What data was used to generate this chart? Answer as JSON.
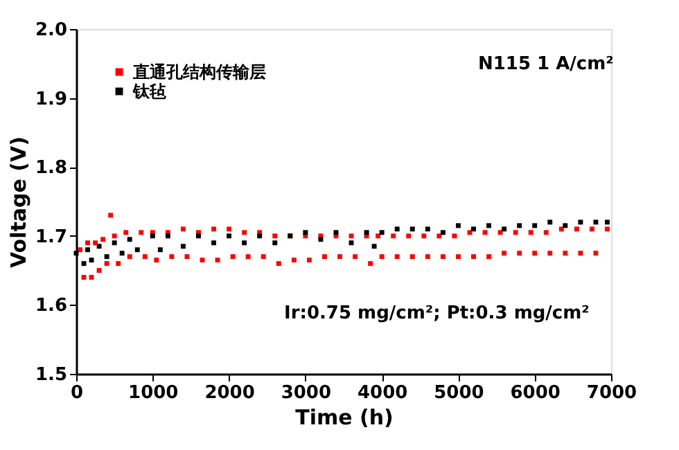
{
  "chart_data": {
    "type": "scatter",
    "xlabel": "Time (h)",
    "ylabel": "Voltage (V)",
    "xlim": [
      0,
      7000
    ],
    "ylim": [
      1.5,
      2.0
    ],
    "xticks": [
      0,
      1000,
      2000,
      3000,
      4000,
      5000,
      6000,
      7000
    ],
    "yticks": [
      1.5,
      1.6,
      1.7,
      1.8,
      1.9,
      {
        "value": 2.0,
        "label": "2.0"
      }
    ],
    "grid": false,
    "legend": "top left",
    "marker": "square",
    "annotations": [
      "N115  1 A/cm²",
      "Ir:0.75 mg/cm²; Pt:0.3 mg/cm²"
    ],
    "series": [
      {
        "name": "直通孔结构传输层",
        "color": "#ff0000",
        "x": [
          50,
          100,
          150,
          200,
          250,
          300,
          350,
          400,
          450,
          500,
          550,
          650,
          700,
          850,
          900,
          1000,
          1050,
          1200,
          1250,
          1400,
          1450,
          1600,
          1650,
          1800,
          1850,
          2000,
          2050,
          2200,
          2250,
          2400,
          2450,
          2600,
          2650,
          2800,
          2850,
          3000,
          3050,
          3200,
          3250,
          3400,
          3450,
          3600,
          3650,
          3800,
          3850,
          3950,
          4000,
          4150,
          4200,
          4350,
          4400,
          4550,
          4600,
          4750,
          4800,
          4950,
          5000,
          5150,
          5200,
          5350,
          5400,
          5550,
          5600,
          5750,
          5800,
          5950,
          6000,
          6150,
          6200,
          6350,
          6400,
          6550,
          6600,
          6750,
          6800,
          6950
        ],
        "values": [
          1.68,
          1.64,
          1.69,
          1.64,
          1.69,
          1.65,
          1.695,
          1.66,
          1.73,
          1.7,
          1.66,
          1.705,
          1.67,
          1.705,
          1.67,
          1.705,
          1.665,
          1.705,
          1.67,
          1.71,
          1.67,
          1.705,
          1.665,
          1.71,
          1.665,
          1.71,
          1.67,
          1.705,
          1.67,
          1.705,
          1.67,
          1.7,
          1.66,
          1.7,
          1.665,
          1.7,
          1.665,
          1.7,
          1.67,
          1.7,
          1.67,
          1.7,
          1.67,
          1.7,
          1.66,
          1.7,
          1.67,
          1.7,
          1.67,
          1.7,
          1.67,
          1.7,
          1.67,
          1.7,
          1.67,
          1.7,
          1.67,
          1.705,
          1.67,
          1.705,
          1.67,
          1.705,
          1.675,
          1.705,
          1.675,
          1.705,
          1.675,
          1.705,
          1.675,
          1.71,
          1.675,
          1.71,
          1.675,
          1.71,
          1.675,
          1.71
        ]
      },
      {
        "name": "钛毡",
        "color": "#000000",
        "x": [
          0,
          100,
          150,
          200,
          300,
          400,
          500,
          600,
          700,
          800,
          1000,
          1100,
          1200,
          1400,
          1600,
          1800,
          2000,
          2200,
          2400,
          2600,
          2800,
          3000,
          3200,
          3400,
          3600,
          3800,
          3900,
          4000,
          4200,
          4400,
          4600,
          4800,
          5000,
          5200,
          5400,
          5600,
          5800,
          6000,
          6200,
          6400,
          6600,
          6800,
          6950
        ],
        "values": [
          1.675,
          1.66,
          1.68,
          1.665,
          1.685,
          1.67,
          1.69,
          1.675,
          1.695,
          1.68,
          1.7,
          1.68,
          1.7,
          1.685,
          1.7,
          1.69,
          1.7,
          1.69,
          1.7,
          1.69,
          1.7,
          1.705,
          1.695,
          1.705,
          1.69,
          1.705,
          1.685,
          1.705,
          1.71,
          1.71,
          1.71,
          1.705,
          1.715,
          1.71,
          1.715,
          1.71,
          1.715,
          1.715,
          1.72,
          1.715,
          1.72,
          1.72,
          1.72
        ]
      }
    ]
  }
}
